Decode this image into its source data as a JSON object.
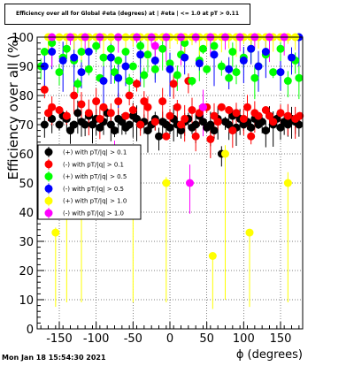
{
  "chart_data": {
    "type": "scatter",
    "title": "Efficiency over all for Global #eta (degrees) at | #eta | <= 1.0 at pT > 0.11",
    "xlabel": "ϕ (degrees)",
    "ylabel": "Efficiency over all (%)",
    "xlim": [
      -180,
      180
    ],
    "ylim": [
      0,
      100
    ],
    "x_ticks": [
      -150,
      -100,
      -50,
      0,
      50,
      100,
      150
    ],
    "y_ticks": [
      0,
      10,
      20,
      30,
      40,
      50,
      60,
      70,
      80,
      90,
      100
    ],
    "grid": true,
    "legend_position": "left-middle",
    "series": [
      {
        "name": "(+) with pT/|q| > 0.1",
        "color": "#000000",
        "points": [
          [
            -170,
            70
          ],
          [
            -160,
            72
          ],
          [
            -150,
            70
          ],
          [
            -145,
            73
          ],
          [
            -140,
            72
          ],
          [
            -135,
            68
          ],
          [
            -130,
            70
          ],
          [
            -125,
            74
          ],
          [
            -120,
            71
          ],
          [
            -115,
            70
          ],
          [
            -110,
            73
          ],
          [
            -105,
            70
          ],
          [
            -100,
            72
          ],
          [
            -95,
            69
          ],
          [
            -90,
            71
          ],
          [
            -85,
            74
          ],
          [
            -80,
            70
          ],
          [
            -75,
            68
          ],
          [
            -70,
            72
          ],
          [
            -65,
            71
          ],
          [
            -60,
            69
          ],
          [
            -55,
            70
          ],
          [
            -50,
            73
          ],
          [
            -45,
            72
          ],
          [
            -40,
            70
          ],
          [
            -35,
            71
          ],
          [
            -30,
            68
          ],
          [
            -25,
            70
          ],
          [
            -20,
            72
          ],
          [
            -15,
            66
          ],
          [
            -10,
            71
          ],
          [
            -5,
            70
          ],
          [
            0,
            69
          ],
          [
            5,
            72
          ],
          [
            10,
            70
          ],
          [
            15,
            68
          ],
          [
            20,
            71
          ],
          [
            25,
            72
          ],
          [
            30,
            69
          ],
          [
            35,
            70
          ],
          [
            40,
            73
          ],
          [
            45,
            71
          ],
          [
            50,
            69
          ],
          [
            55,
            70
          ],
          [
            60,
            68
          ],
          [
            65,
            72
          ],
          [
            70,
            60
          ],
          [
            75,
            71
          ],
          [
            80,
            70
          ],
          [
            85,
            73
          ],
          [
            90,
            69
          ],
          [
            95,
            72
          ],
          [
            100,
            70
          ],
          [
            105,
            71
          ],
          [
            110,
            69
          ],
          [
            115,
            72
          ],
          [
            120,
            70
          ],
          [
            125,
            71
          ],
          [
            130,
            68
          ],
          [
            135,
            73
          ],
          [
            140,
            70
          ],
          [
            145,
            72
          ],
          [
            150,
            69
          ],
          [
            155,
            71
          ],
          [
            160,
            70
          ],
          [
            165,
            72
          ],
          [
            170,
            71
          ],
          [
            175,
            70
          ]
        ]
      },
      {
        "name": "(-) with pT/|q| > 0.1",
        "color": "#ff0000",
        "points": [
          [
            -170,
            82
          ],
          [
            -165,
            74
          ],
          [
            -160,
            76
          ],
          [
            -150,
            75
          ],
          [
            -140,
            73
          ],
          [
            -130,
            80
          ],
          [
            -120,
            77
          ],
          [
            -110,
            74
          ],
          [
            -100,
            78
          ],
          [
            -95,
            72
          ],
          [
            -90,
            76
          ],
          [
            -80,
            74
          ],
          [
            -70,
            78
          ],
          [
            -60,
            73
          ],
          [
            -55,
            80
          ],
          [
            -50,
            75
          ],
          [
            -45,
            84
          ],
          [
            -40,
            70
          ],
          [
            -35,
            78
          ],
          [
            -30,
            76
          ],
          [
            -20,
            71
          ],
          [
            -10,
            78
          ],
          [
            -5,
            66
          ],
          [
            0,
            73
          ],
          [
            5,
            84
          ],
          [
            10,
            76
          ],
          [
            15,
            70
          ],
          [
            20,
            72
          ],
          [
            25,
            85
          ],
          [
            30,
            75
          ],
          [
            35,
            66
          ],
          [
            40,
            74
          ],
          [
            50,
            76
          ],
          [
            55,
            65
          ],
          [
            60,
            73
          ],
          [
            65,
            71
          ],
          [
            70,
            76
          ],
          [
            80,
            75
          ],
          [
            85,
            68
          ],
          [
            90,
            74
          ],
          [
            100,
            72
          ],
          [
            105,
            76
          ],
          [
            110,
            66
          ],
          [
            115,
            74
          ],
          [
            120,
            73
          ],
          [
            130,
            75
          ],
          [
            135,
            73
          ],
          [
            140,
            71
          ],
          [
            150,
            74
          ],
          [
            160,
            73
          ],
          [
            170,
            72
          ],
          [
            176,
            73
          ]
        ]
      },
      {
        "name": "(+) with pT/|q| > 0.5",
        "color": "#00ff00",
        "points": [
          [
            -175,
            90
          ],
          [
            -170,
            95
          ],
          [
            -160,
            98
          ],
          [
            -150,
            88
          ],
          [
            -145,
            93
          ],
          [
            -140,
            96
          ],
          [
            -130,
            92
          ],
          [
            -125,
            84
          ],
          [
            -120,
            95
          ],
          [
            -110,
            89
          ],
          [
            -100,
            97
          ],
          [
            -95,
            86
          ],
          [
            -90,
            93
          ],
          [
            -80,
            96
          ],
          [
            -75,
            88
          ],
          [
            -70,
            92
          ],
          [
            -60,
            95
          ],
          [
            -55,
            85
          ],
          [
            -50,
            90
          ],
          [
            -40,
            97
          ],
          [
            -35,
            87
          ],
          [
            -30,
            94
          ],
          [
            -20,
            89
          ],
          [
            -10,
            96
          ],
          [
            0,
            91
          ],
          [
            10,
            87
          ],
          [
            15,
            94
          ],
          [
            20,
            98
          ],
          [
            30,
            85
          ],
          [
            40,
            92
          ],
          [
            45,
            96
          ],
          [
            50,
            89
          ],
          [
            60,
            97
          ],
          [
            70,
            90
          ],
          [
            80,
            86
          ],
          [
            85,
            95
          ],
          [
            90,
            88
          ],
          [
            100,
            93
          ],
          [
            110,
            96
          ],
          [
            115,
            86
          ],
          [
            120,
            90
          ],
          [
            130,
            94
          ],
          [
            140,
            88
          ],
          [
            150,
            96
          ],
          [
            160,
            85
          ],
          [
            170,
            92
          ],
          [
            175,
            86
          ]
        ]
      },
      {
        "name": "(-) with pT/|q| > 0.5",
        "color": "#0000ff",
        "points": [
          [
            -170,
            90
          ],
          [
            -160,
            95
          ],
          [
            -145,
            92
          ],
          [
            -130,
            93
          ],
          [
            -120,
            88
          ],
          [
            -110,
            95
          ],
          [
            -90,
            85
          ],
          [
            -80,
            93
          ],
          [
            -70,
            86
          ],
          [
            -60,
            90
          ],
          [
            -40,
            94
          ],
          [
            -20,
            92
          ],
          [
            0,
            89
          ],
          [
            20,
            93
          ],
          [
            40,
            91
          ],
          [
            60,
            94
          ],
          [
            80,
            89
          ],
          [
            100,
            92
          ],
          [
            110,
            96
          ],
          [
            120,
            90
          ],
          [
            130,
            95
          ],
          [
            150,
            88
          ],
          [
            165,
            93
          ],
          [
            175,
            100
          ]
        ]
      },
      {
        "name": "(+) with pT/|q| > 1.0",
        "color": "#ffff00",
        "points": [
          [
            -165,
            100
          ],
          [
            -150,
            100
          ],
          [
            -140,
            100
          ],
          [
            -130,
            100
          ],
          [
            -120,
            100
          ],
          [
            -110,
            100
          ],
          [
            -100,
            100
          ],
          [
            -90,
            100
          ],
          [
            -80,
            100
          ],
          [
            -70,
            100
          ],
          [
            -60,
            100
          ],
          [
            -50,
            100
          ],
          [
            -40,
            100
          ],
          [
            -30,
            100
          ],
          [
            -20,
            100
          ],
          [
            -10,
            100
          ],
          [
            0,
            100
          ],
          [
            10,
            100
          ],
          [
            20,
            100
          ],
          [
            30,
            100
          ],
          [
            40,
            100
          ],
          [
            50,
            100
          ],
          [
            60,
            100
          ],
          [
            70,
            100
          ],
          [
            80,
            100
          ],
          [
            90,
            100
          ],
          [
            100,
            100
          ],
          [
            110,
            100
          ],
          [
            120,
            100
          ],
          [
            130,
            100
          ],
          [
            140,
            100
          ],
          [
            150,
            100
          ],
          [
            160,
            100
          ],
          [
            170,
            100
          ],
          [
            -155,
            33
          ],
          [
            -140,
            50
          ],
          [
            -50,
            50
          ],
          [
            -5,
            50
          ],
          [
            58,
            25
          ],
          [
            108,
            33
          ],
          [
            160,
            50
          ],
          [
            -120,
            50
          ],
          [
            75,
            60
          ]
        ]
      },
      {
        "name": "(-) with pT/|q| > 1.0",
        "color": "#ff00ff",
        "points": [
          [
            -160,
            100
          ],
          [
            -135,
            100
          ],
          [
            -115,
            100
          ],
          [
            -95,
            100
          ],
          [
            -70,
            100
          ],
          [
            -45,
            100
          ],
          [
            -25,
            100
          ],
          [
            -5,
            100
          ],
          [
            15,
            100
          ],
          [
            35,
            100
          ],
          [
            55,
            100
          ],
          [
            75,
            100
          ],
          [
            95,
            100
          ],
          [
            115,
            100
          ],
          [
            135,
            100
          ],
          [
            155,
            100
          ],
          [
            -20,
            97
          ],
          [
            -75,
            60
          ],
          [
            45,
            76
          ],
          [
            27,
            50
          ]
        ]
      }
    ]
  },
  "timestamp": "Mon Jan 18 15:54:30 2021"
}
